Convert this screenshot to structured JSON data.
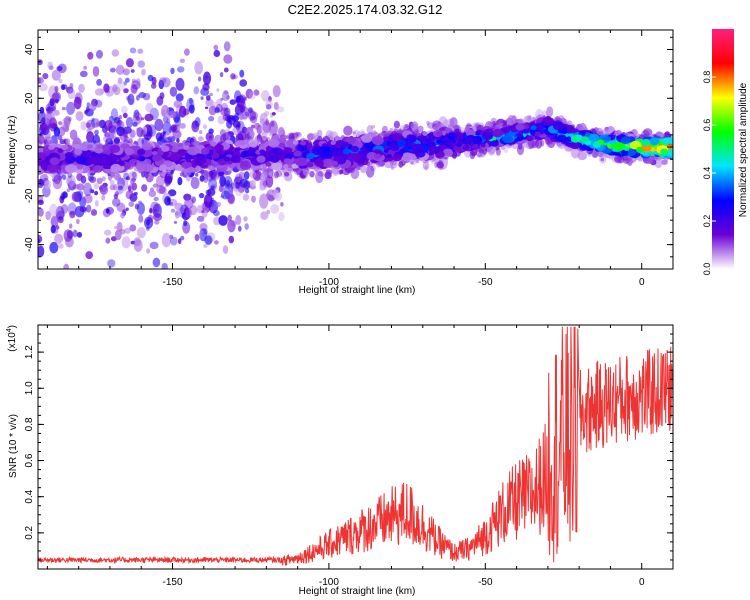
{
  "figure": {
    "title": "C2E2.2025.174.03.32.G12"
  },
  "chart_data": [
    {
      "type": "heatmap",
      "xlabel": "Height of straight line (km)",
      "ylabel": "Frequency (Hz)",
      "xlim": [
        -193,
        10
      ],
      "ylim": [
        -50,
        48
      ],
      "xticks": [
        -150,
        -100,
        -50,
        0
      ],
      "yticks": [
        -40,
        -20,
        0,
        20,
        40
      ],
      "grid": false,
      "colorbar": {
        "label": "Normalized spectral amplitude",
        "range": [
          0,
          1
        ],
        "ticks": [
          0.0,
          0.2,
          0.4,
          0.6,
          0.8
        ],
        "colormap": [
          "#ffffff",
          "#6a00d6",
          "#0000ff",
          "#00e5ff",
          "#00ff00",
          "#ffff00",
          "#ff0000",
          "#ff2080"
        ]
      },
      "ridge": {
        "x": [
          -193,
          -150,
          -120,
          -100,
          -80,
          -60,
          -45,
          -30,
          -20,
          -10,
          0,
          10
        ],
        "frequency": [
          -5,
          -4,
          -3,
          -3,
          0,
          2,
          4,
          8,
          3,
          1,
          0,
          0
        ]
      }
    },
    {
      "type": "line",
      "xlabel": "Height of straight line (km)",
      "ylabel": "SNR (10 * v/v)",
      "y_multiplier": "(x10",
      "y_exponent": "4",
      "xlim": [
        -193,
        10
      ],
      "ylim": [
        0,
        1.35
      ],
      "xticks": [
        -150,
        -100,
        -50,
        0
      ],
      "yticks": [
        0.2,
        0.4,
        0.6,
        0.8,
        1.0,
        1.2
      ],
      "grid": false,
      "series": [
        {
          "color": "#ee3333",
          "x": [
            -193,
            -180,
            -160,
            -140,
            -120,
            -110,
            -100,
            -90,
            -80,
            -75,
            -70,
            -65,
            -60,
            -55,
            -50,
            -45,
            -40,
            -35,
            -30,
            -25,
            -20,
            -15,
            -10,
            -5,
            0,
            5,
            10
          ],
          "y": [
            0.04,
            0.04,
            0.04,
            0.04,
            0.04,
            0.08,
            0.18,
            0.28,
            0.38,
            0.42,
            0.32,
            0.2,
            0.12,
            0.15,
            0.25,
            0.4,
            0.5,
            0.55,
            0.7,
            0.8,
            0.85,
            0.9,
            0.92,
            0.95,
            0.96,
            0.98,
            1.0
          ]
        }
      ]
    }
  ]
}
